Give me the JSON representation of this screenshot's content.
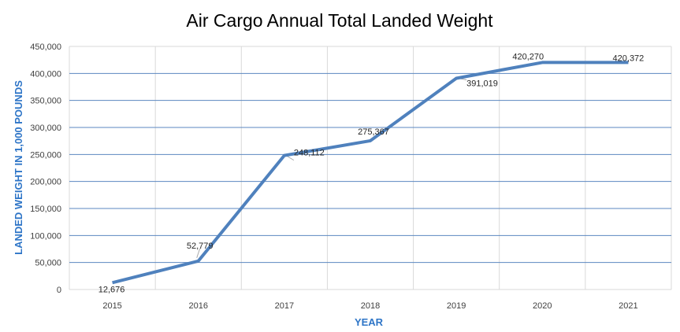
{
  "chart_data": {
    "type": "line",
    "title": "Air Cargo Annual Total Landed Weight",
    "xlabel": "YEAR",
    "ylabel": "LANDED WEIGHT IN 1,000 POUNDS",
    "categories": [
      "2015",
      "2016",
      "2017",
      "2018",
      "2019",
      "2020",
      "2021"
    ],
    "values": [
      12676,
      52779,
      248112,
      275367,
      391019,
      420270,
      420372
    ],
    "data_labels": [
      "12,676",
      "52,779",
      "248,112",
      "275,367",
      "391,019",
      "420,270",
      "420,372"
    ],
    "ylim": [
      0,
      450000
    ],
    "yticks": [
      "0",
      "50,000",
      "100,000",
      "150,000",
      "200,000",
      "250,000",
      "300,000",
      "350,000",
      "400,000",
      "450,000"
    ],
    "grid": true,
    "legend": "none",
    "line_color": "#4f81bd",
    "gridline_color": "#5b87c0",
    "axis_label_color": "#2e75c7"
  }
}
